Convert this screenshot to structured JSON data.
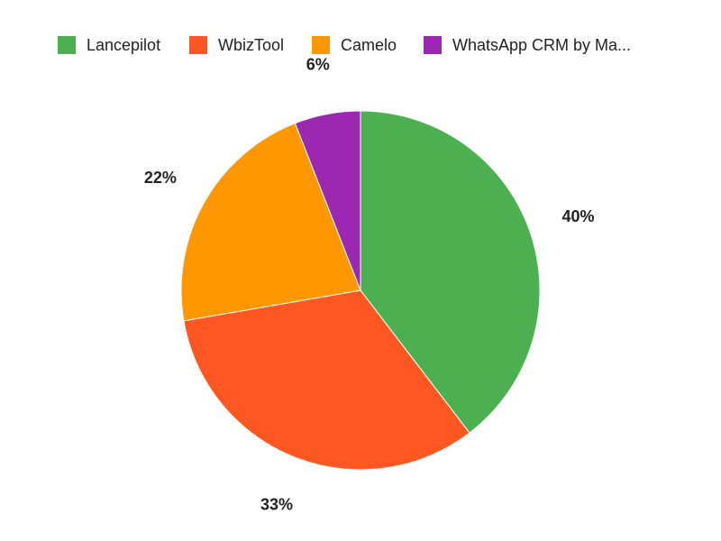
{
  "chart_data": {
    "type": "pie",
    "title": "",
    "legend_position": "top",
    "start_angle_deg": 0,
    "direction": "clockwise",
    "slices": [
      {
        "label": "Lancepilot",
        "value": 40,
        "display": "40%",
        "color": "#4CAF50"
      },
      {
        "label": "WbizTool",
        "value": 33,
        "display": "33%",
        "color": "#FF5722"
      },
      {
        "label": "Camelo",
        "value": 22,
        "display": "22%",
        "color": "#FF9800"
      },
      {
        "label": "WhatsApp CRM by Ma...",
        "value": 6,
        "display": "6%",
        "color": "#9C27B0"
      }
    ]
  }
}
